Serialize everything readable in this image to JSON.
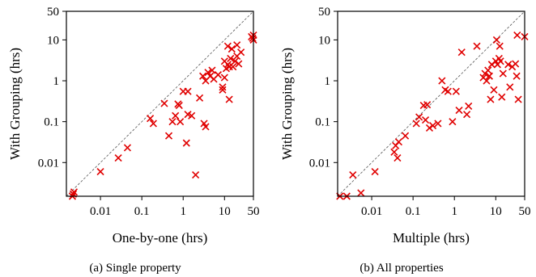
{
  "chart_data": [
    {
      "type": "scatter",
      "xlabel": "One-by-one (hrs)",
      "ylabel": "With Grouping (hrs)",
      "caption": "(a) Single property",
      "xscale": "log",
      "yscale": "log",
      "xlim": [
        0.0015,
        50
      ],
      "ylim": [
        0.0015,
        50
      ],
      "xticks": [
        "0.01",
        "0.1",
        "1",
        "10",
        "50"
      ],
      "yticks": [
        "0.01",
        "0.1",
        "1",
        "10",
        "50"
      ],
      "marker_color": "#e00000",
      "reference_line": "y = x (dashed)",
      "points": [
        [
          0.0021,
          0.0015
        ],
        [
          0.0022,
          0.0017
        ],
        [
          0.0023,
          0.0019
        ],
        [
          0.01,
          0.006
        ],
        [
          0.027,
          0.013
        ],
        [
          0.045,
          0.023
        ],
        [
          0.16,
          0.12
        ],
        [
          0.19,
          0.09
        ],
        [
          0.35,
          0.28
        ],
        [
          0.45,
          0.045
        ],
        [
          0.55,
          0.1
        ],
        [
          0.65,
          0.14
        ],
        [
          0.75,
          0.27
        ],
        [
          0.8,
          0.25
        ],
        [
          0.85,
          0.1
        ],
        [
          1.0,
          0.55
        ],
        [
          1.2,
          0.03
        ],
        [
          1.3,
          0.55
        ],
        [
          1.3,
          0.15
        ],
        [
          1.6,
          0.14
        ],
        [
          2.0,
          0.005
        ],
        [
          2.5,
          0.38
        ],
        [
          3.0,
          1.3
        ],
        [
          3.2,
          0.09
        ],
        [
          3.5,
          0.075
        ],
        [
          3.5,
          1.0
        ],
        [
          4.0,
          1.6
        ],
        [
          4.5,
          1.3
        ],
        [
          5.0,
          1.8
        ],
        [
          5.5,
          1.1
        ],
        [
          7.0,
          1.4
        ],
        [
          9.0,
          0.7
        ],
        [
          9.0,
          0.6
        ],
        [
          10.0,
          1.2
        ],
        [
          10.0,
          3.0
        ],
        [
          11.0,
          2.0
        ],
        [
          12.0,
          2.5
        ],
        [
          12.0,
          7.0
        ],
        [
          13.0,
          2.2
        ],
        [
          13.0,
          0.35
        ],
        [
          14.0,
          3.5
        ],
        [
          15.0,
          6.0
        ],
        [
          16.0,
          2.2
        ],
        [
          18.0,
          3.0
        ],
        [
          20.0,
          4.0
        ],
        [
          20.0,
          7.5
        ],
        [
          22.0,
          2.6
        ],
        [
          25.0,
          5.0
        ],
        [
          45.0,
          12.0
        ],
        [
          48.0,
          11.0
        ],
        [
          50.0,
          13.0
        ],
        [
          50.0,
          10.0
        ]
      ]
    },
    {
      "type": "scatter",
      "xlabel": "Multiple (hrs)",
      "ylabel": "With Grouping (hrs)",
      "caption": "(b) All properties",
      "xscale": "log",
      "yscale": "log",
      "xlim": [
        0.0015,
        50
      ],
      "ylim": [
        0.0015,
        50
      ],
      "xticks": [
        "0.01",
        "0.1",
        "1",
        "10",
        "50"
      ],
      "yticks": [
        "0.01",
        "0.1",
        "1",
        "10",
        "50"
      ],
      "marker_color": "#e00000",
      "reference_line": "y = x (dashed)",
      "points": [
        [
          0.0017,
          0.0015
        ],
        [
          0.0025,
          0.0015
        ],
        [
          0.0035,
          0.005
        ],
        [
          0.0055,
          0.0018
        ],
        [
          0.012,
          0.006
        ],
        [
          0.035,
          0.018
        ],
        [
          0.038,
          0.026
        ],
        [
          0.042,
          0.013
        ],
        [
          0.045,
          0.032
        ],
        [
          0.065,
          0.045
        ],
        [
          0.12,
          0.09
        ],
        [
          0.14,
          0.13
        ],
        [
          0.18,
          0.25
        ],
        [
          0.2,
          0.11
        ],
        [
          0.22,
          0.26
        ],
        [
          0.25,
          0.07
        ],
        [
          0.3,
          0.08
        ],
        [
          0.4,
          0.09
        ],
        [
          0.5,
          1.0
        ],
        [
          0.6,
          0.6
        ],
        [
          0.7,
          0.55
        ],
        [
          0.9,
          0.1
        ],
        [
          1.1,
          0.55
        ],
        [
          1.3,
          0.19
        ],
        [
          1.5,
          5.0
        ],
        [
          2.0,
          0.15
        ],
        [
          2.2,
          0.24
        ],
        [
          3.5,
          7.0
        ],
        [
          5.0,
          1.2
        ],
        [
          5.5,
          1.5
        ],
        [
          6.0,
          1.0
        ],
        [
          6.5,
          1.8
        ],
        [
          7.0,
          1.3
        ],
        [
          7.5,
          0.35
        ],
        [
          8.0,
          2.5
        ],
        [
          9.0,
          0.6
        ],
        [
          10.0,
          3.0
        ],
        [
          10.5,
          10.0
        ],
        [
          11.0,
          2.5
        ],
        [
          12.0,
          3.5
        ],
        [
          12.5,
          7.0
        ],
        [
          13.0,
          3.0
        ],
        [
          14.0,
          0.4
        ],
        [
          15.0,
          1.5
        ],
        [
          20.0,
          2.5
        ],
        [
          22.0,
          0.7
        ],
        [
          25.0,
          2.2
        ],
        [
          30.0,
          2.6
        ],
        [
          32.0,
          1.3
        ],
        [
          33.0,
          13.0
        ],
        [
          35.0,
          0.35
        ],
        [
          50.0,
          12.0
        ]
      ]
    }
  ]
}
